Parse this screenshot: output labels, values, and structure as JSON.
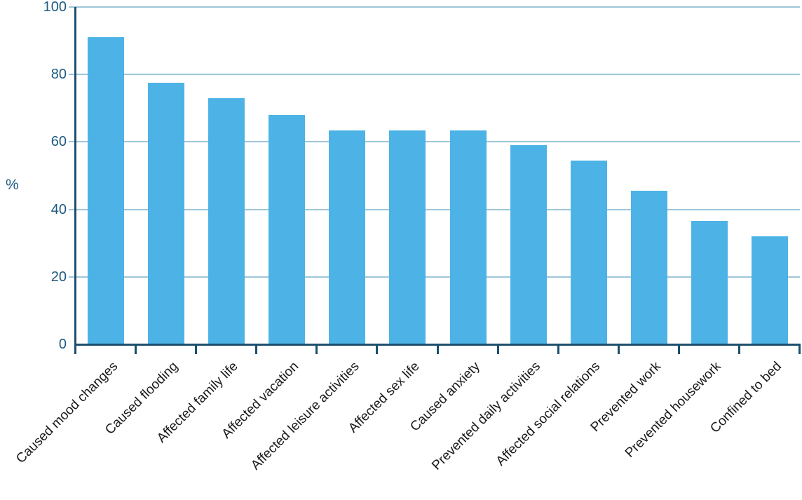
{
  "chart_data": {
    "type": "bar",
    "title": "",
    "xlabel": "",
    "ylabel": "%",
    "categories": [
      "Caused mood changes",
      "Caused flooding",
      "Affected family life",
      "Affected vacation",
      "Affected leisure activities",
      "Affected sex life",
      "Caused anxiety",
      "Prevented daily activities",
      "Affected social relations",
      "Prevented work",
      "Prevented housework",
      "Confined to bed"
    ],
    "values": [
      91,
      77.5,
      73,
      68,
      63.5,
      63.5,
      63.5,
      59,
      54.5,
      45.5,
      36.5,
      32
    ],
    "ylim": [
      0,
      100
    ],
    "yticks": [
      0,
      20,
      40,
      60,
      80,
      100
    ],
    "grid": true,
    "legend": false,
    "bar_orientation": "vertical",
    "x_label_rotation_deg": 45,
    "colors": {
      "bar": "#4DB3E6",
      "axis": "#1C4F6E",
      "tick_label": "#1E5A80",
      "gridline": "#9FC6DA",
      "category_label": "#1A1A1A"
    }
  }
}
